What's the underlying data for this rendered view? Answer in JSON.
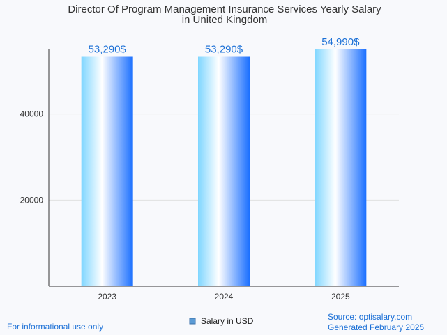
{
  "colors": {
    "accent": "#1a6fd6",
    "bar_light": "#7fd6ff",
    "bar_mid": "#ffffff",
    "bar_dark": "#1a6fff",
    "grid": "#e0e0e0",
    "axis": "#333333"
  },
  "footer": {
    "disclaimer": "For informational use only",
    "source": "Source: optisalary.com",
    "generated": "Generated February 2025"
  },
  "chart_data": {
    "type": "bar",
    "title_lines": [
      "Director Of Program Management Insurance Services Yearly Salary",
      "in United Kingdom"
    ],
    "categories": [
      "2023",
      "2024",
      "2025"
    ],
    "series": [
      {
        "name": "Salary in USD",
        "values": [
          53290,
          53290,
          54990
        ]
      }
    ],
    "data_labels": [
      "53,290$",
      "53,290$",
      "54,990$"
    ],
    "y_ticks": [
      20000,
      40000
    ],
    "y_tick_labels": [
      "20000",
      "40000"
    ],
    "ylim": [
      0,
      54990
    ],
    "grid": true,
    "legend_position": "bottom"
  }
}
